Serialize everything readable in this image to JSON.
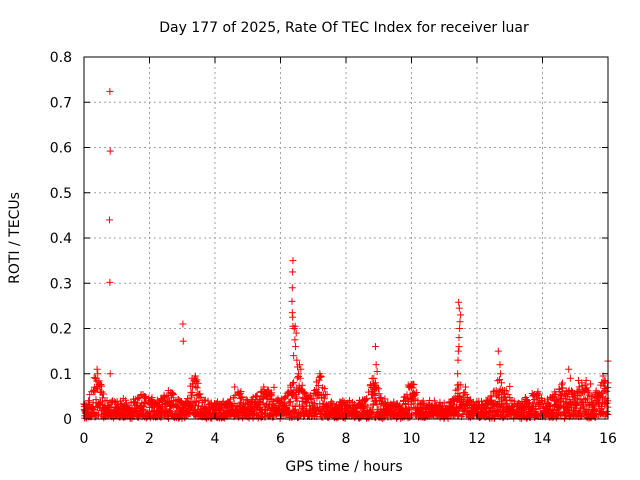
{
  "chart_data": {
    "type": "scatter",
    "title": "Day 177 of 2025, Rate Of TEC Index for receiver luar",
    "xlabel": "GPS time / hours",
    "ylabel": "ROTI / TECUs",
    "xlim": [
      0,
      16
    ],
    "ylim": [
      0,
      0.8
    ],
    "xticks": [
      0,
      2,
      4,
      6,
      8,
      10,
      12,
      14,
      16
    ],
    "yticks": [
      0,
      0.1,
      0.2,
      0.3,
      0.4,
      0.5,
      0.6,
      0.7,
      0.8
    ],
    "grid": true,
    "marker": "+",
    "color": "#ff0000",
    "series": [
      {
        "name": "ROTI",
        "x": [
          0.79,
          0.8,
          0.78,
          0.79,
          0.8,
          3.02,
          3.03,
          6.38,
          6.37,
          6.36,
          6.35,
          6.36,
          6.37,
          6.38,
          6.42,
          6.45,
          6.48,
          6.44,
          6.46,
          6.4,
          6.5,
          6.52,
          6.55,
          6.6,
          6.58,
          6.62,
          7.2,
          7.22,
          8.8,
          8.85,
          8.9,
          8.92,
          8.95,
          8.9,
          8.88,
          11.4,
          11.42,
          11.45,
          11.47,
          11.5,
          11.44,
          11.46,
          11.48,
          11.43,
          11.41,
          11.45,
          12.65,
          12.7,
          12.72,
          12.75,
          12.68,
          13.0,
          14.8,
          14.85,
          15.1,
          15.2,
          15.85,
          15.9,
          16.0,
          0.3,
          0.35,
          0.4,
          0.42,
          0.45,
          3.3,
          3.4,
          4.7,
          5.5,
          5.8,
          9.9,
          10.0,
          1.2
        ],
        "values": [
          0.724,
          0.592,
          0.44,
          0.302,
          0.1,
          0.21,
          0.172,
          0.35,
          0.325,
          0.29,
          0.26,
          0.235,
          0.225,
          0.205,
          0.2,
          0.205,
          0.19,
          0.175,
          0.16,
          0.14,
          0.13,
          0.115,
          0.1,
          0.09,
          0.12,
          0.11,
          0.1,
          0.095,
          0.055,
          0.09,
          0.16,
          0.12,
          0.105,
          0.08,
          0.07,
          0.075,
          0.13,
          0.18,
          0.2,
          0.23,
          0.258,
          0.245,
          0.215,
          0.15,
          0.1,
          0.16,
          0.15,
          0.12,
          0.1,
          0.08,
          0.06,
          0.072,
          0.11,
          0.09,
          0.085,
          0.08,
          0.095,
          0.085,
          0.128,
          0.06,
          0.09,
          0.11,
          0.1,
          0.08,
          0.09,
          0.095,
          0.06,
          0.065,
          0.07,
          0.075,
          0.07,
          0.045
        ]
      }
    ],
    "background_band": {
      "x_start": 0,
      "x_end": 16,
      "x_step": 0.02,
      "baseline": 0.012,
      "amplitude": 0.03,
      "bumps": [
        [
          0.4,
          0.06,
          0.2
        ],
        [
          1.8,
          0.02,
          0.3
        ],
        [
          2.6,
          0.025,
          0.25
        ],
        [
          3.4,
          0.06,
          0.2
        ],
        [
          4.7,
          0.04,
          0.2
        ],
        [
          5.5,
          0.04,
          0.3
        ],
        [
          6.5,
          0.06,
          0.3
        ],
        [
          7.2,
          0.06,
          0.2
        ],
        [
          8.8,
          0.05,
          0.25
        ],
        [
          10.0,
          0.055,
          0.2
        ],
        [
          11.5,
          0.05,
          0.2
        ],
        [
          12.7,
          0.05,
          0.25
        ],
        [
          13.8,
          0.03,
          0.25
        ],
        [
          14.6,
          0.04,
          0.3
        ],
        [
          15.3,
          0.05,
          0.3
        ],
        [
          15.9,
          0.06,
          0.2
        ]
      ]
    }
  }
}
